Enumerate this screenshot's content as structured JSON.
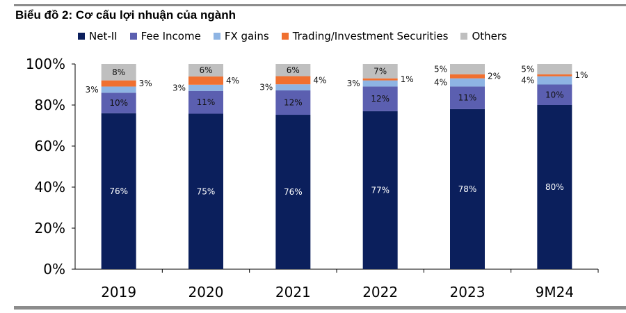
{
  "chart_data": {
    "type": "bar",
    "stacked": true,
    "title": "Biểu đồ 2: Cơ cấu lợi nhuận của ngành",
    "categories": [
      "2019",
      "2020",
      "2021",
      "2022",
      "2023",
      "9M24"
    ],
    "series": [
      {
        "name": "Net-II",
        "color": "#0b1f5c",
        "values": [
          76,
          75,
          76,
          77,
          78,
          80
        ]
      },
      {
        "name": "Fee Income",
        "color": "#5b5fb0",
        "values": [
          10,
          11,
          12,
          12,
          11,
          10
        ]
      },
      {
        "name": "FX gains",
        "color": "#8eb4e3",
        "values": [
          3,
          3,
          3,
          3,
          4,
          4
        ]
      },
      {
        "name": "Trading/Investment Securities",
        "color": "#f07030",
        "values": [
          3,
          4,
          4,
          1,
          2,
          1
        ]
      },
      {
        "name": "Others",
        "color": "#bfbfbf",
        "values": [
          8,
          6,
          6,
          7,
          5,
          5
        ]
      }
    ],
    "yticks": [
      "0%",
      "20%",
      "40%",
      "60%",
      "80%",
      "100%"
    ],
    "ylim": [
      0,
      100
    ],
    "legend": "top",
    "grid": false
  }
}
